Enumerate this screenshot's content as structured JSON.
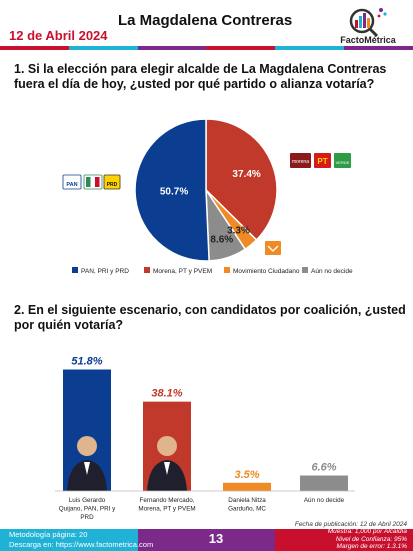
{
  "header": {
    "date": "12 de Abril 2024",
    "title": "La Magdalena Contreras",
    "brand": "FactoMétrica"
  },
  "colors": {
    "red": "#c0392b",
    "blue": "#0b3d91",
    "orange": "#f08a24",
    "gray": "#8c8c8c",
    "accent_red": "#c8102e",
    "accent_cyan": "#20b2d6",
    "accent_purple": "#7b2a8a"
  },
  "question1": {
    "text": "1. Si la elección para elegir alcalde de La Magdalena Contreras fuera el día de hoy, ¿usted por qué partido o alianza votaría?"
  },
  "question2": {
    "text": "2. En el siguiente escenario, con candidatos por coalición, ¿usted por quién votaría?"
  },
  "chart_data": [
    {
      "type": "pie",
      "labels": [
        "PAN, PRI y PRD",
        "Morena, PT y PVEM",
        "Movimiento Ciudadano",
        "Aún no decide"
      ],
      "values": [
        50.7,
        37.4,
        3.3,
        8.6
      ],
      "value_labels": [
        "50.7%",
        "37.4%",
        "3.3%",
        "8.6%"
      ],
      "colors": [
        "#0b3d91",
        "#c0392b",
        "#f08a24",
        "#8c8c8c"
      ],
      "legend_position": "bottom"
    },
    {
      "type": "bar",
      "categories": [
        "Luis Gerardo Quijano, PAN, PRI y PRD",
        "Fernando Mercado, Morena, PT y PVEM",
        "Daniela Nitza Garduño, MC",
        "Aún no decide"
      ],
      "values": [
        51.8,
        38.1,
        3.5,
        6.6
      ],
      "value_labels": [
        "51.8%",
        "38.1%",
        "3.5%",
        "6.6%"
      ],
      "colors": [
        "#0b3d91",
        "#c0392b",
        "#f08a24",
        "#8c8c8c"
      ],
      "ylim": [
        0,
        55
      ]
    }
  ],
  "footer": {
    "method": "Metodología página: 20",
    "download": "Descarga en: https://www.factometrica.com",
    "page": "13",
    "published": "Fecha de publicación: 12 de Abril 2024",
    "sample": "Muestra: 1,000 por Alcaldía",
    "confidence": "Nivel de Confianza: 95%",
    "margin": "Margen de error: 1.3.1%"
  }
}
